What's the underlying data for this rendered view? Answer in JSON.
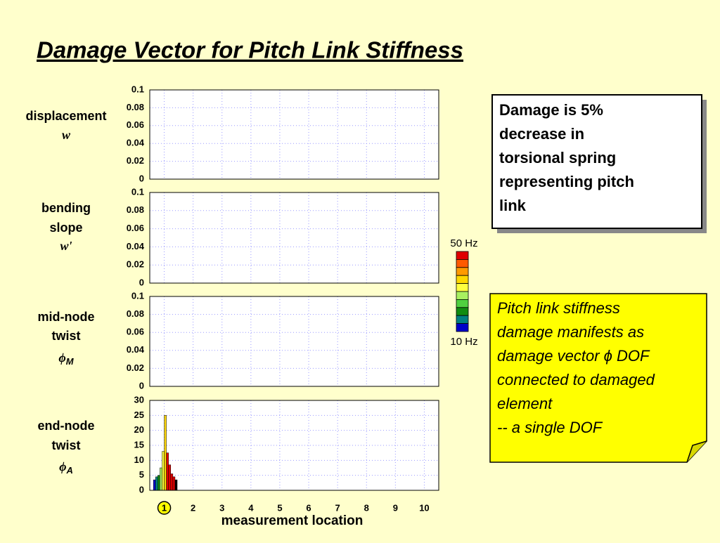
{
  "title": "Damage Vector for Pitch Link Stiffness",
  "note_box": {
    "lines": [
      "Damage is 5%",
      "decrease in",
      "torsional spring",
      "representing pitch",
      "link"
    ]
  },
  "callout": {
    "lines": [
      "Pitch link stiffness",
      "damage manifests as",
      "damage vector ϕ DOF",
      "connected to damaged",
      "element",
      "-- a single DOF"
    ]
  },
  "colorbar": {
    "top_label": "50 Hz",
    "bottom_label": "10 Hz",
    "colors": [
      "#e00000",
      "#ff5a00",
      "#ff9a00",
      "#ffd800",
      "#ffff40",
      "#a8f060",
      "#50d040",
      "#108c10",
      "#008080",
      "#0000c8"
    ]
  },
  "chart_data": [
    {
      "type": "bar",
      "ylabel": [
        "displacement",
        "w"
      ],
      "ylim": [
        0,
        0.1
      ],
      "yticks": [
        0,
        0.02,
        0.04,
        0.06,
        0.08,
        0.1
      ],
      "xlim": [
        0.5,
        10.5
      ],
      "xticks": [
        1,
        2,
        3,
        4,
        5,
        6,
        7,
        8,
        9,
        10
      ],
      "grid": true,
      "series": []
    },
    {
      "type": "bar",
      "ylabel": [
        "bending",
        "slope",
        "w'"
      ],
      "ylim": [
        0,
        0.1
      ],
      "yticks": [
        0,
        0.02,
        0.04,
        0.06,
        0.08,
        0.1
      ],
      "xlim": [
        0.5,
        10.5
      ],
      "xticks": [
        1,
        2,
        3,
        4,
        5,
        6,
        7,
        8,
        9,
        10
      ],
      "grid": true,
      "series": []
    },
    {
      "type": "bar",
      "ylabel": [
        "mid-node",
        "twist",
        "ϕM"
      ],
      "ylim": [
        0,
        0.1
      ],
      "yticks": [
        0,
        0.02,
        0.04,
        0.06,
        0.08,
        0.1
      ],
      "xlim": [
        0.5,
        10.5
      ],
      "xticks": [
        1,
        2,
        3,
        4,
        5,
        6,
        7,
        8,
        9,
        10
      ],
      "grid": true,
      "series": []
    },
    {
      "type": "bar",
      "ylabel": [
        "end-node",
        "twist",
        "ϕA"
      ],
      "ylim": [
        0,
        30
      ],
      "yticks": [
        0,
        5,
        10,
        15,
        20,
        25,
        30
      ],
      "xlim": [
        0.5,
        10.5
      ],
      "xticks": [
        1,
        2,
        3,
        4,
        5,
        6,
        7,
        8,
        9,
        10
      ],
      "grid": true,
      "xlabel": "measurement location",
      "highlighted_xtick": 0,
      "series": [
        {
          "color": "#0000c8",
          "values": [
            3.5,
            0,
            0,
            0,
            0,
            0,
            0,
            0,
            0,
            0
          ]
        },
        {
          "color": "#008080",
          "values": [
            4.5,
            0,
            0,
            0,
            0,
            0,
            0,
            0,
            0,
            0
          ]
        },
        {
          "color": "#108c10",
          "values": [
            5,
            0,
            0,
            0,
            0,
            0,
            0,
            0,
            0,
            0
          ]
        },
        {
          "color": "#a8f060",
          "values": [
            7.5,
            0,
            0,
            0,
            0,
            0,
            0,
            0,
            0,
            0
          ]
        },
        {
          "color": "#ffff40",
          "values": [
            13,
            0,
            0,
            0,
            0,
            0,
            0,
            0,
            0,
            0
          ]
        },
        {
          "color": "#ffd800",
          "values": [
            25,
            0,
            0,
            0,
            0,
            0,
            0,
            0,
            0,
            0
          ]
        },
        {
          "color": "#e00000",
          "values": [
            12.5,
            0,
            0,
            0,
            0,
            0,
            0,
            0,
            0,
            0
          ]
        },
        {
          "color": "#e00000",
          "values": [
            8.5,
            0,
            0,
            0,
            0,
            0,
            0,
            0,
            0,
            0
          ]
        },
        {
          "color": "#e00000",
          "values": [
            5.5,
            0,
            0,
            0,
            0,
            0,
            0,
            0,
            0,
            0
          ]
        },
        {
          "color": "#e00000",
          "values": [
            4.5,
            0,
            0,
            0,
            0,
            0,
            0,
            0,
            0,
            0
          ]
        },
        {
          "color": "#000000",
          "values": [
            3.5,
            0,
            0,
            0,
            0,
            0,
            0,
            0,
            0,
            0
          ]
        }
      ]
    }
  ]
}
